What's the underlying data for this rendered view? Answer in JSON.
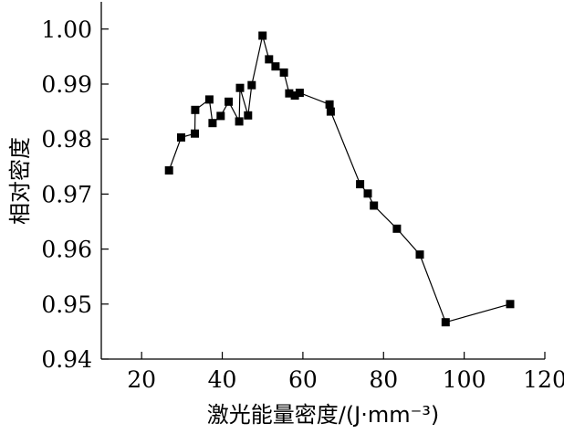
{
  "chart_data": {
    "type": "line",
    "title": "",
    "xlabel": "激光能量密度/(J·mm⁻³)",
    "ylabel": "相对密度",
    "xlim": [
      10,
      120
    ],
    "ylim": [
      0.94,
      1.005
    ],
    "x_ticks": [
      20,
      40,
      60,
      80,
      100,
      120
    ],
    "y_ticks": [
      0.94,
      0.95,
      0.96,
      0.97,
      0.98,
      0.99,
      1.0
    ],
    "x_tick_labels": [
      "20",
      "40",
      "60",
      "80",
      "100",
      "120"
    ],
    "y_tick_labels": [
      "0.94",
      "0.95",
      "0.96",
      "0.97",
      "0.98",
      "0.99",
      "1.00"
    ],
    "grid": false,
    "marker": "square",
    "series": [
      {
        "x": [
          26.8,
          29.8,
          33.2,
          33.3,
          36.8,
          37.6,
          39.6,
          41.6,
          44.2,
          44.4,
          46.4,
          47.3,
          50.0,
          51.6,
          53.2,
          55.3,
          56.6,
          58.0,
          59.2,
          66.6,
          66.9,
          74.2,
          76.1,
          77.6,
          83.3,
          89.0,
          95.4,
          111.4
        ],
        "y": [
          0.9743,
          0.9803,
          0.981,
          0.9853,
          0.9872,
          0.9829,
          0.9842,
          0.9868,
          0.9832,
          0.9893,
          0.9843,
          0.9898,
          0.9988,
          0.9945,
          0.9932,
          0.9921,
          0.9883,
          0.9879,
          0.9884,
          0.9863,
          0.985,
          0.9718,
          0.9701,
          0.9679,
          0.9637,
          0.959,
          0.9467,
          0.95
        ]
      }
    ]
  }
}
